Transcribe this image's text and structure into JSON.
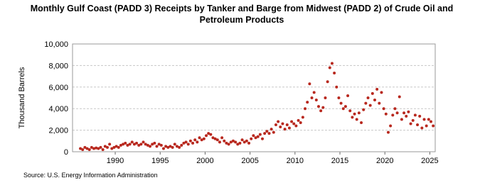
{
  "chart_data": {
    "type": "scatter",
    "title": "Monthly Gulf Coast (PADD 3) Receipts by Tanker and Barge from Midwest (PADD 2) of Crude Oil and Petroleum Products",
    "y_label": "Thousand Barrels",
    "source": "Source: U.S. Energy Information Administration",
    "xlim": [
      1985.25,
      2025.6
    ],
    "xticks": [
      1990,
      1995,
      2000,
      2005,
      2010,
      2015,
      2020,
      2025
    ],
    "ylim": [
      0,
      10000
    ],
    "yticks": [
      0,
      {
        "value": 2000,
        "label": "2,000"
      },
      {
        "value": 4000,
        "label": "4,000"
      },
      {
        "value": 6000,
        "label": "6,000"
      },
      {
        "value": 8000,
        "label": "8,000"
      },
      {
        "value": 10000,
        "label": "10,000"
      }
    ],
    "grid": true,
    "series": [
      {
        "name": "Receipts",
        "color": "#b8281e",
        "x": [
          1986.125,
          1986.375,
          1986.625,
          1986.875,
          1987.125,
          1987.375,
          1987.625,
          1987.875,
          1988.125,
          1988.375,
          1988.625,
          1988.875,
          1989.125,
          1989.375,
          1989.625,
          1989.875,
          1990.125,
          1990.375,
          1990.625,
          1990.875,
          1991.125,
          1991.375,
          1991.625,
          1991.875,
          1992.125,
          1992.375,
          1992.625,
          1992.875,
          1993.125,
          1993.375,
          1993.625,
          1993.875,
          1994.125,
          1994.375,
          1994.625,
          1994.875,
          1995.125,
          1995.375,
          1995.625,
          1995.875,
          1996.125,
          1996.375,
          1996.625,
          1996.875,
          1997.125,
          1997.375,
          1997.625,
          1997.875,
          1998.125,
          1998.375,
          1998.625,
          1998.875,
          1999.125,
          1999.375,
          1999.625,
          1999.875,
          2000.125,
          2000.375,
          2000.625,
          2000.875,
          2001.125,
          2001.375,
          2001.625,
          2001.875,
          2002.125,
          2002.375,
          2002.625,
          2002.875,
          2003.125,
          2003.375,
          2003.625,
          2003.875,
          2004.125,
          2004.375,
          2004.625,
          2004.875,
          2005.125,
          2005.375,
          2005.625,
          2005.875,
          2006.125,
          2006.375,
          2006.625,
          2006.875,
          2007.125,
          2007.375,
          2007.625,
          2007.875,
          2008.125,
          2008.375,
          2008.625,
          2008.875,
          2009.125,
          2009.375,
          2009.625,
          2009.875,
          2010.125,
          2010.375,
          2010.625,
          2010.875,
          2011.125,
          2011.375,
          2011.625,
          2011.875,
          2012.125,
          2012.375,
          2012.625,
          2012.875,
          2013.125,
          2013.375,
          2013.625,
          2013.875,
          2014.125,
          2014.375,
          2014.625,
          2014.875,
          2015.125,
          2015.375,
          2015.625,
          2015.875,
          2016.125,
          2016.375,
          2016.625,
          2016.875,
          2017.125,
          2017.375,
          2017.625,
          2017.875,
          2018.125,
          2018.375,
          2018.625,
          2018.875,
          2019.125,
          2019.375,
          2019.625,
          2019.875,
          2020.125,
          2020.375,
          2020.625,
          2020.875,
          2021.125,
          2021.375,
          2021.625,
          2021.875,
          2022.125,
          2022.375,
          2022.625,
          2022.875,
          2023.125,
          2023.375,
          2023.625,
          2023.875,
          2024.125,
          2024.375,
          2024.625,
          2024.875,
          2025.125,
          2025.375
        ],
        "values": [
          300,
          200,
          400,
          300,
          200,
          400,
          300,
          350,
          300,
          400,
          200,
          500,
          400,
          700,
          300,
          400,
          500,
          400,
          600,
          700,
          800,
          600,
          700,
          900,
          700,
          800,
          600,
          700,
          900,
          700,
          600,
          500,
          700,
          800,
          500,
          700,
          600,
          300,
          500,
          400,
          500,
          400,
          700,
          500,
          400,
          600,
          800,
          900,
          700,
          1000,
          800,
          1100,
          900,
          1300,
          1100,
          1200,
          1500,
          1700,
          1600,
          1300,
          1200,
          1100,
          900,
          1300,
          1000,
          800,
          700,
          900,
          1000,
          900,
          700,
          800,
          1100,
          900,
          1000,
          800,
          1200,
          1500,
          1300,
          1400,
          1600,
          1200,
          1700,
          1900,
          1700,
          2100,
          1800,
          2500,
          2800,
          2300,
          2600,
          2100,
          2500,
          2200,
          2800,
          2600,
          2400,
          2900,
          2700,
          3200,
          4000,
          4600,
          6300,
          5000,
          5500,
          4800,
          4200,
          3800,
          4100,
          5000,
          6500,
          7800,
          8200,
          7300,
          6000,
          5000,
          4500,
          4000,
          4200,
          5200,
          3800,
          3200,
          3500,
          3000,
          3600,
          2700,
          3900,
          4500,
          5000,
          4300,
          5400,
          4800,
          5800,
          4500,
          5500,
          4000,
          3500,
          1800,
          2400,
          3400,
          4000,
          3600,
          5100,
          3000,
          3600,
          3300,
          3700,
          2600,
          2900,
          3400,
          2500,
          3300,
          2200,
          3000,
          2400,
          3000,
          2800,
          2400
        ]
      }
    ]
  }
}
